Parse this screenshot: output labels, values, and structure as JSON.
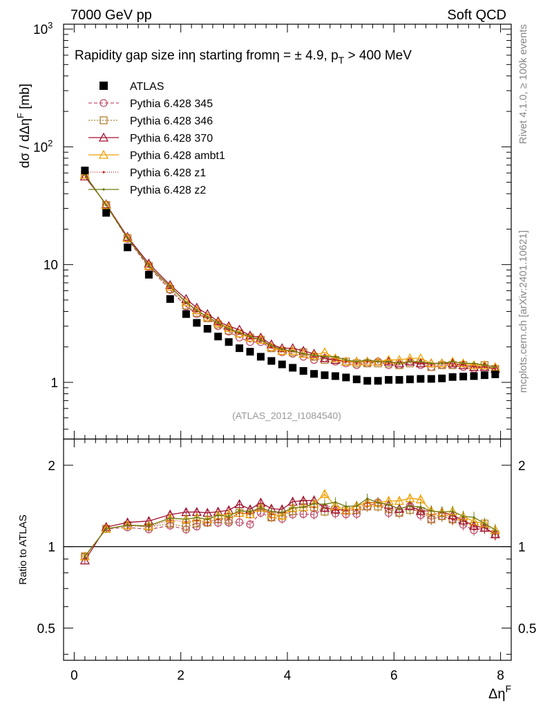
{
  "header": {
    "left": "7000 GeV pp",
    "right": "Soft QCD"
  },
  "side_labels": {
    "rivet": "Rivet 4.1.0, ≥ 100k events",
    "mcplots": "mcplots.cern.ch [arXiv:2401.10621]"
  },
  "colors": {
    "ATLAS": "#000000",
    "p345": "#c0506a",
    "p346": "#b08030",
    "p370": "#a01030",
    "ambt1": "#f0a000",
    "z1": "#c02020",
    "z2": "#6a7a10"
  },
  "chart_data": [
    {
      "type": "line",
      "panel": "main",
      "title": "Rapidity gap size inη starting fromη = ± 4.9, p_T > 400 MeV",
      "title_parts": {
        "pre": "Rapidity gap size inη starting fromη = ± 4.9, p",
        "sub": "T",
        "post": " > 400 MeV"
      },
      "ylabel": "dσ / dΔη^F [mb]",
      "ylabel_parts": {
        "pre": "dσ / dΔη",
        "sup": "F",
        "post": " [mb]"
      },
      "xlabel": "Δη^F",
      "yscale": "log",
      "ylim": [
        0.33,
        1100
      ],
      "xlim": [
        -0.2,
        8.2
      ],
      "y_ticks": [
        {
          "v": 1,
          "label": "1"
        },
        {
          "v": 10,
          "label": "10"
        },
        {
          "v": 100,
          "label": "10",
          "exp": "2"
        },
        {
          "v": 1000,
          "label": "10",
          "exp": "3"
        }
      ],
      "watermark": "(ATLAS_2012_I1084540)",
      "legend": [
        {
          "key": "ATLAS",
          "label": "ATLAS"
        },
        {
          "key": "p345",
          "label": "Pythia 6.428 345"
        },
        {
          "key": "p346",
          "label": "Pythia 6.428 346"
        },
        {
          "key": "p370",
          "label": "Pythia 6.428 370"
        },
        {
          "key": "ambt1",
          "label": "Pythia 6.428 ambt1"
        },
        {
          "key": "z1",
          "label": "Pythia 6.428 z1"
        },
        {
          "key": "z2",
          "label": "Pythia 6.428 z2"
        }
      ],
      "x": [
        0.2,
        0.6,
        1.0,
        1.4,
        1.8,
        2.1,
        2.3,
        2.5,
        2.7,
        2.9,
        3.1,
        3.3,
        3.5,
        3.7,
        3.9,
        4.1,
        4.3,
        4.5,
        4.7,
        4.9,
        5.1,
        5.3,
        5.5,
        5.7,
        5.9,
        6.1,
        6.3,
        6.5,
        6.7,
        6.9,
        7.1,
        7.3,
        7.5,
        7.7,
        7.9
      ],
      "series": [
        {
          "name": "ATLAS",
          "key": "ATLAS",
          "marker": "square-filled",
          "values": [
            63,
            27.5,
            14,
            8.2,
            5.1,
            3.8,
            3.2,
            2.85,
            2.45,
            2.2,
            1.95,
            1.82,
            1.65,
            1.52,
            1.42,
            1.33,
            1.25,
            1.18,
            1.15,
            1.13,
            1.1,
            1.06,
            1.03,
            1.03,
            1.05,
            1.05,
            1.06,
            1.07,
            1.07,
            1.08,
            1.11,
            1.12,
            1.13,
            1.15,
            1.17
          ]
        },
        {
          "name": "Pythia 6.428 345",
          "key": "p345",
          "marker": "circle-open",
          "dash": "5,3",
          "values": [
            58,
            32,
            16.5,
            9.5,
            6.1,
            4.4,
            3.8,
            3.5,
            3.0,
            2.7,
            2.4,
            2.2,
            2.2,
            1.95,
            1.8,
            1.75,
            1.65,
            1.55,
            1.6,
            1.5,
            1.45,
            1.4,
            1.45,
            1.5,
            1.4,
            1.4,
            1.5,
            1.4,
            1.35,
            1.4,
            1.4,
            1.35,
            1.3,
            1.35,
            1.3
          ]
        },
        {
          "name": "Pythia 6.428 346",
          "key": "p346",
          "marker": "square-open",
          "dash": "2,2",
          "values": [
            58,
            32,
            16.8,
            9.7,
            6.2,
            4.5,
            3.9,
            3.5,
            3.1,
            2.75,
            2.6,
            2.4,
            2.3,
            1.95,
            1.85,
            1.8,
            1.8,
            1.65,
            1.55,
            1.55,
            1.5,
            1.45,
            1.45,
            1.45,
            1.45,
            1.4,
            1.45,
            1.45,
            1.35,
            1.4,
            1.4,
            1.4,
            1.35,
            1.4,
            1.3
          ]
        },
        {
          "name": "Pythia 6.428 370",
          "key": "p370",
          "marker": "triangle-open",
          "values": [
            56,
            32.5,
            17.2,
            10.2,
            6.7,
            5.1,
            4.3,
            3.8,
            3.3,
            3.0,
            2.8,
            2.5,
            2.4,
            2.1,
            1.95,
            1.95,
            1.85,
            1.75,
            1.6,
            1.55,
            1.5,
            1.5,
            1.5,
            1.5,
            1.5,
            1.45,
            1.5,
            1.45,
            1.45,
            1.45,
            1.45,
            1.4,
            1.35,
            1.35,
            1.3
          ]
        },
        {
          "name": "Pythia 6.428 ambt1",
          "key": "ambt1",
          "marker": "triangle-open",
          "values": [
            58,
            32,
            16.8,
            9.8,
            6.5,
            4.8,
            4.1,
            3.6,
            3.2,
            2.9,
            2.6,
            2.4,
            2.3,
            2.0,
            1.85,
            1.85,
            1.75,
            1.7,
            1.8,
            1.6,
            1.5,
            1.5,
            1.5,
            1.5,
            1.55,
            1.55,
            1.6,
            1.6,
            1.45,
            1.45,
            1.5,
            1.45,
            1.4,
            1.4,
            1.35
          ]
        },
        {
          "name": "Pythia 6.428 z1",
          "key": "z1",
          "marker": "dot",
          "dash": "1,2",
          "values": [
            58,
            32,
            16.8,
            9.7,
            6.4,
            4.7,
            4.0,
            3.5,
            3.1,
            2.8,
            2.6,
            2.4,
            2.3,
            2.0,
            1.9,
            1.85,
            1.75,
            1.65,
            1.65,
            1.55,
            1.5,
            1.45,
            1.5,
            1.5,
            1.45,
            1.45,
            1.5,
            1.45,
            1.4,
            1.45,
            1.4,
            1.4,
            1.35,
            1.35,
            1.3
          ]
        },
        {
          "name": "Pythia 6.428 z2",
          "key": "z2",
          "marker": "dot",
          "values": [
            58,
            32,
            16.8,
            9.8,
            6.5,
            4.8,
            4.1,
            3.6,
            3.2,
            2.85,
            2.65,
            2.45,
            2.3,
            2.05,
            1.9,
            1.85,
            1.75,
            1.7,
            1.65,
            1.65,
            1.55,
            1.5,
            1.55,
            1.5,
            1.5,
            1.45,
            1.5,
            1.5,
            1.45,
            1.45,
            1.5,
            1.45,
            1.45,
            1.4,
            1.35
          ]
        }
      ]
    },
    {
      "type": "line",
      "panel": "ratio",
      "ylabel": "Ratio to ATLAS",
      "xlabel": "Δη^F",
      "xlabel_parts": {
        "pre": "Δη",
        "sup": "F"
      },
      "yscale": "log",
      "ylim": [
        0.38,
        2.5
      ],
      "xlim": [
        -0.2,
        8.2
      ],
      "y_ticks": [
        {
          "v": 0.5,
          "label": "0.5"
        },
        {
          "v": 1,
          "label": "1"
        },
        {
          "v": 2,
          "label": "2"
        }
      ],
      "x_ticks": [
        {
          "v": 0,
          "label": "0"
        },
        {
          "v": 2,
          "label": "2"
        },
        {
          "v": 4,
          "label": "4"
        },
        {
          "v": 6,
          "label": "6"
        },
        {
          "v": 8,
          "label": "8"
        }
      ],
      "reference_line": 1
    }
  ]
}
